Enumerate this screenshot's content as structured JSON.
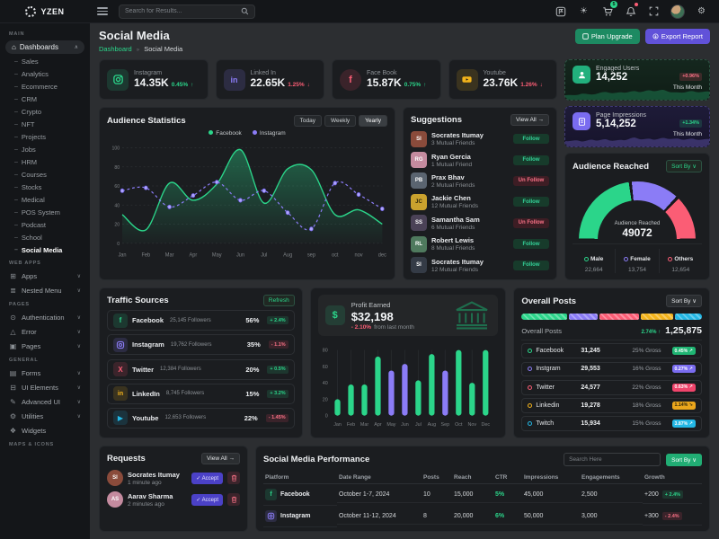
{
  "colors": {
    "green": "#2bd58a",
    "purple": "#8b7cf6",
    "red": "#fb5d75",
    "orange": "#f3b31b",
    "blue": "#23b7e5"
  },
  "topbar": {
    "logo": "YZEN",
    "search_placeholder": "Search for Results...",
    "cart_badge": "5"
  },
  "sidebar": {
    "label_main": "MAIN",
    "dashboards": "Dashboards",
    "dash_items": [
      "Sales",
      "Analytics",
      "Ecommerce",
      "CRM",
      "Crypto",
      "NFT",
      "Projects",
      "Jobs",
      "HRM",
      "Courses",
      "Stocks",
      "Medical",
      "POS System",
      "Podcast",
      "School",
      "Social Media"
    ],
    "label_webapps": "WEB APPS",
    "webapps": [
      "Apps",
      "Nested Menu"
    ],
    "label_pages": "PAGES",
    "pages": [
      "Authentication",
      "Error",
      "Pages"
    ],
    "label_general": "GENERAL",
    "general": [
      "Forms",
      "UI Elements",
      "Advanced UI",
      "Utilities",
      "Widgets"
    ],
    "label_maps": "MAPS & ICONS"
  },
  "header": {
    "title": "Social Media",
    "breadcrumb_home": "Dashboard",
    "breadcrumb_current": "Social Media",
    "plan_upgrade": "Plan Upgrade",
    "export_report": "Export Report"
  },
  "stats": [
    {
      "label": "Instagram",
      "value": "14.35K",
      "change": "0.45%",
      "arrow": "↑"
    },
    {
      "label": "Linked In",
      "value": "22.65K",
      "change": "1.25%",
      "arrow": "↓"
    },
    {
      "label": "Face Book",
      "value": "15.87K",
      "change": "0.75%",
      "arrow": "↑"
    },
    {
      "label": "Youtube",
      "value": "23.76K",
      "change": "1.26%",
      "arrow": "↓"
    }
  ],
  "engaged": {
    "label": "Engaged Users",
    "value": "14,252",
    "badge": "+0.96%",
    "period": "This Month"
  },
  "impressions": {
    "label": "Page Impressions",
    "value": "5,14,252",
    "badge": "+1.34%",
    "period": "This Month"
  },
  "audience": {
    "title": "Audience Statistics",
    "tabs": [
      "Today",
      "Weekly",
      "Yearly"
    ]
  },
  "suggestions": {
    "title": "Suggestions",
    "view_all": "View All →",
    "rows": [
      {
        "name": "Socrates Itumay",
        "mutual": "3 Mutual Friends",
        "action": "Follow"
      },
      {
        "name": "Ryan Gercia",
        "mutual": "1 Mutual Friend",
        "action": "Follow"
      },
      {
        "name": "Prax Bhav",
        "mutual": "2 Mutual Friends",
        "action": "Un Follow"
      },
      {
        "name": "Jackie Chen",
        "mutual": "12 Mutual Friends",
        "action": "Follow"
      },
      {
        "name": "Samantha Sam",
        "mutual": "6 Mutual Friends",
        "action": "Un Follow"
      },
      {
        "name": "Robert Lewis",
        "mutual": "8 Mutual Friends",
        "action": "Follow"
      },
      {
        "name": "Socrates Itumay",
        "mutual": "12 Mutual Friends",
        "action": "Follow"
      }
    ]
  },
  "reached": {
    "title": "Audience Reached",
    "sort_by": "Sort By ∨"
  },
  "traffic": {
    "title": "Traffic Sources",
    "refresh": "Refresh",
    "rows": [
      {
        "name": "Facebook",
        "followers": "25,145 Followers",
        "pct": "56%",
        "badge": "+ 2.4%",
        "dir": "up"
      },
      {
        "name": "Instagram",
        "followers": "19,762 Followers",
        "pct": "35%",
        "badge": "- 1.1%",
        "dir": "down"
      },
      {
        "name": "Twitter",
        "followers": "12,384 Followers",
        "pct": "20%",
        "badge": "+ 0.5%",
        "dir": "up"
      },
      {
        "name": "LinkedIn",
        "followers": "8,745 Followers",
        "pct": "15%",
        "badge": "+ 3.2%",
        "dir": "up"
      },
      {
        "name": "Youtube",
        "followers": "12,653 Followers",
        "pct": "22%",
        "badge": "- 1.45%",
        "dir": "down"
      }
    ]
  },
  "profit": {
    "title": "Profit Earned",
    "value": "$32,198",
    "change": "- 2.10%",
    "note": "from last month"
  },
  "posts": {
    "title": "Overall Posts",
    "sort_by": "Sort By ∨",
    "label": "Overall Posts",
    "change": "2.74% ↑",
    "total": "1,25,875",
    "rows": [
      {
        "name": "Facebook",
        "value": "31,245",
        "gross": "25% Gross",
        "badge": "0.45% ↗",
        "color": "#2bd58a"
      },
      {
        "name": "Instgram",
        "value": "29,553",
        "gross": "16% Gross",
        "badge": "0.27% ↗",
        "color": "#8b7cf6"
      },
      {
        "name": "Twitter",
        "value": "24,577",
        "gross": "22% Gross",
        "badge": "0.63% ↗",
        "color": "#fb5d75"
      },
      {
        "name": "Linkedin",
        "value": "19,278",
        "gross": "18% Gross",
        "badge": "1.14% ↘",
        "color": "#f3b31b"
      },
      {
        "name": "Twitch",
        "value": "15,934",
        "gross": "15% Gross",
        "badge": "3.87% ↗",
        "color": "#23b7e5"
      }
    ]
  },
  "requests": {
    "title": "Requests",
    "view_all": "View All →",
    "accept": "✓ Accept",
    "rows": [
      {
        "name": "Socrates Itumay",
        "time": "1 minute ago"
      },
      {
        "name": "Aarav Sharma",
        "time": "2 minutes ago"
      }
    ]
  },
  "perf": {
    "title": "Social Media Performance",
    "search_placeholder": "Search Here",
    "sort_by": "Sort By ∨",
    "columns": [
      "Platform",
      "Date Range",
      "Posts",
      "Reach",
      "CTR",
      "Impressions",
      "Engagements",
      "Growth"
    ],
    "rows": [
      {
        "platform": "Facebook",
        "date": "October 1-7, 2024",
        "posts": "10",
        "reach": "15,000",
        "ctr": "5%",
        "impr": "45,000",
        "eng": "2,500",
        "growth": "+200",
        "badge": "+ 2.4%",
        "dir": "up"
      },
      {
        "platform": "Instagram",
        "date": "October 11-12, 2024",
        "posts": "8",
        "reach": "20,000",
        "ctr": "6%",
        "impr": "50,000",
        "eng": "3,000",
        "growth": "+300",
        "badge": "- 2.4%",
        "dir": "down"
      }
    ]
  },
  "chart_data": [
    {
      "id": "audience",
      "type": "line",
      "title": "Audience Statistics",
      "x": [
        "Jan",
        "Feb",
        "Mar",
        "Apr",
        "May",
        "Jun",
        "Jul",
        "Aug",
        "sep",
        "oct",
        "nov",
        "dec"
      ],
      "ylim": [
        0,
        100
      ],
      "yticks": [
        0,
        20,
        40,
        60,
        80,
        100
      ],
      "legend_position": "top",
      "grid": true,
      "series": [
        {
          "name": "Facebook",
          "color": "#2bd58a",
          "style": "solid-area",
          "values": [
            30,
            14,
            63,
            45,
            62,
            98,
            42,
            78,
            77,
            30,
            35,
            20
          ]
        },
        {
          "name": "Instagram",
          "color": "#8b7cf6",
          "style": "dashed-markers",
          "values": [
            55,
            58,
            38,
            50,
            64,
            45,
            55,
            32,
            15,
            63,
            51,
            36
          ]
        }
      ]
    },
    {
      "id": "profit",
      "type": "bar",
      "title": "Profit Earned",
      "x": [
        "Jan",
        "Feb",
        "Mar",
        "Apr",
        "May",
        "Jun",
        "Jul",
        "Aug",
        "Sep",
        "Oct",
        "Nov",
        "Dec"
      ],
      "ylim": [
        0,
        80
      ],
      "yticks": [
        0,
        20,
        40,
        60,
        80
      ],
      "values": [
        20,
        38,
        38,
        72,
        55,
        63,
        43,
        75,
        55,
        80,
        40,
        80
      ],
      "colors": [
        "#2bd58a",
        "#2bd58a",
        "#2bd58a",
        "#2bd58a",
        "#8b7cf6",
        "#8b7cf6",
        "#2bd58a",
        "#2bd58a",
        "#8b7cf6",
        "#2bd58a",
        "#2bd58a",
        "#2bd58a"
      ]
    },
    {
      "id": "gauge",
      "type": "gauge",
      "label": "Audience Reached",
      "total": "49072",
      "segments": [
        {
          "label": "Male",
          "value": 22664,
          "display": "22,664",
          "color": "#2bd58a"
        },
        {
          "label": "Female",
          "value": 13754,
          "display": "13,754",
          "color": "#8b7cf6"
        },
        {
          "label": "Others",
          "value": 12654,
          "display": "12,654",
          "color": "#fb5d75"
        }
      ]
    },
    {
      "id": "posts_bar",
      "type": "stacked-bar",
      "segments": [
        {
          "label": "Facebook",
          "pct": 25,
          "color": "#2bd58a"
        },
        {
          "label": "Instgram",
          "pct": 16,
          "color": "#8b7cf6"
        },
        {
          "label": "Twitter",
          "pct": 22,
          "color": "#fb5d75"
        },
        {
          "label": "Linkedin",
          "pct": 18,
          "color": "#f3b31b"
        },
        {
          "label": "Twitch",
          "pct": 15,
          "color": "#23b7e5"
        }
      ]
    }
  ]
}
